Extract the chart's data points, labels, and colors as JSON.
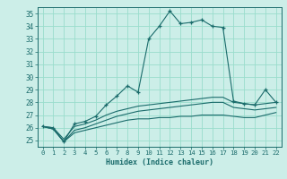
{
  "xlabel": "Humidex (Indice chaleur)",
  "bg_color": "#cceee8",
  "grid_color": "#99ddcc",
  "line_color": "#1a6b6b",
  "xlim": [
    -0.5,
    22.5
  ],
  "ylim": [
    24.5,
    35.5
  ],
  "yticks": [
    25,
    26,
    27,
    28,
    29,
    30,
    31,
    32,
    33,
    34,
    35
  ],
  "xticks": [
    0,
    1,
    2,
    3,
    4,
    5,
    6,
    7,
    8,
    9,
    10,
    11,
    12,
    13,
    14,
    15,
    16,
    17,
    18,
    19,
    20,
    21,
    22
  ],
  "series": [
    {
      "x": [
        0,
        1,
        2,
        3,
        4,
        5,
        6,
        7,
        8,
        9,
        10,
        11,
        12,
        13,
        14,
        15,
        16,
        17,
        18,
        19,
        20,
        21,
        22
      ],
      "y": [
        26.1,
        26.0,
        24.9,
        26.3,
        26.5,
        26.9,
        27.8,
        28.5,
        29.3,
        28.8,
        33.0,
        34.0,
        35.2,
        34.2,
        34.3,
        34.5,
        34.0,
        33.9,
        28.1,
        27.9,
        27.8,
        29.0,
        28.0
      ],
      "marker": "+"
    },
    {
      "x": [
        0,
        1,
        2,
        3,
        4,
        5,
        6,
        7,
        8,
        9,
        10,
        11,
        12,
        13,
        14,
        15,
        16,
        17,
        18,
        19,
        20,
        21,
        22
      ],
      "y": [
        26.1,
        26.0,
        25.1,
        26.1,
        26.3,
        26.6,
        27.0,
        27.3,
        27.5,
        27.7,
        27.8,
        27.9,
        28.0,
        28.1,
        28.2,
        28.3,
        28.4,
        28.4,
        28.0,
        27.9,
        27.8,
        27.9,
        28.0
      ],
      "marker": null
    },
    {
      "x": [
        0,
        1,
        2,
        3,
        4,
        5,
        6,
        7,
        8,
        9,
        10,
        11,
        12,
        13,
        14,
        15,
        16,
        17,
        18,
        19,
        20,
        21,
        22
      ],
      "y": [
        26.1,
        25.9,
        24.9,
        25.8,
        26.0,
        26.3,
        26.6,
        26.9,
        27.1,
        27.3,
        27.4,
        27.5,
        27.6,
        27.7,
        27.8,
        27.9,
        28.0,
        28.0,
        27.6,
        27.5,
        27.4,
        27.5,
        27.6
      ],
      "marker": null
    },
    {
      "x": [
        0,
        1,
        2,
        3,
        4,
        5,
        6,
        7,
        8,
        9,
        10,
        11,
        12,
        13,
        14,
        15,
        16,
        17,
        18,
        19,
        20,
        21,
        22
      ],
      "y": [
        26.1,
        25.9,
        24.9,
        25.6,
        25.8,
        26.0,
        26.2,
        26.4,
        26.6,
        26.7,
        26.7,
        26.8,
        26.8,
        26.9,
        26.9,
        27.0,
        27.0,
        27.0,
        26.9,
        26.8,
        26.8,
        27.0,
        27.2
      ],
      "marker": null
    }
  ]
}
